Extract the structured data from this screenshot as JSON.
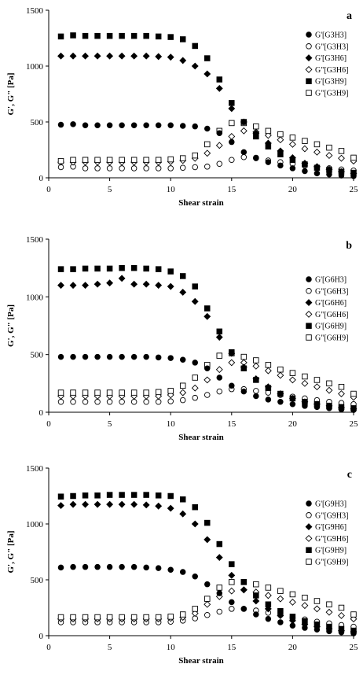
{
  "chart_data": [
    {
      "type": "scatter",
      "panel_label": "a",
      "xlabel": "Shear strain",
      "ylabel": "G', G\" [Pa]",
      "xlim": [
        0,
        25
      ],
      "ylim": [
        0,
        1500
      ],
      "xticks": [
        0,
        5,
        10,
        15,
        20,
        25
      ],
      "yticks": [
        0,
        500,
        1000,
        1500
      ],
      "legend_position": "right",
      "x": [
        1,
        2,
        3,
        4,
        5,
        6,
        7,
        8,
        9,
        10,
        11,
        12,
        13,
        14,
        15,
        16,
        17,
        18,
        19,
        20,
        21,
        22,
        23,
        24,
        25
      ],
      "series": [
        {
          "name": "G'[G3H3]",
          "marker": "circle-filled",
          "values": [
            475,
            480,
            470,
            470,
            470,
            470,
            470,
            470,
            470,
            470,
            465,
            460,
            440,
            400,
            320,
            230,
            180,
            140,
            110,
            85,
            60,
            40,
            30,
            20,
            15
          ]
        },
        {
          "name": "G\"[G3H3]",
          "marker": "circle-open",
          "values": [
            95,
            100,
            85,
            85,
            85,
            85,
            85,
            85,
            85,
            85,
            90,
            95,
            100,
            125,
            160,
            185,
            175,
            155,
            140,
            125,
            110,
            95,
            85,
            75,
            65
          ]
        },
        {
          "name": "G'[G3H6]",
          "marker": "diamond-filled",
          "values": [
            1090,
            1090,
            1090,
            1090,
            1090,
            1090,
            1090,
            1090,
            1085,
            1080,
            1050,
            1000,
            930,
            800,
            620,
            500,
            400,
            310,
            240,
            180,
            130,
            100,
            75,
            55,
            40
          ]
        },
        {
          "name": "G\"[G3H6]",
          "marker": "diamond-open",
          "values": [
            140,
            140,
            140,
            140,
            140,
            140,
            140,
            140,
            140,
            145,
            155,
            175,
            220,
            290,
            370,
            420,
            410,
            380,
            340,
            300,
            260,
            230,
            200,
            175,
            150
          ]
        },
        {
          "name": "G'[G3H9]",
          "marker": "square-filled",
          "values": [
            1265,
            1275,
            1270,
            1270,
            1270,
            1270,
            1270,
            1270,
            1265,
            1260,
            1240,
            1180,
            1070,
            880,
            670,
            500,
            370,
            280,
            210,
            160,
            120,
            90,
            70,
            55,
            45
          ]
        },
        {
          "name": "G\"[G3H9]",
          "marker": "square-open",
          "values": [
            150,
            160,
            160,
            160,
            160,
            160,
            160,
            160,
            160,
            165,
            175,
            200,
            300,
            420,
            490,
            490,
            460,
            420,
            390,
            360,
            330,
            300,
            270,
            240,
            180
          ]
        }
      ]
    },
    {
      "type": "scatter",
      "panel_label": "b",
      "xlabel": "Shear strain",
      "ylabel": "G', G\" [Pa]",
      "xlim": [
        0,
        25
      ],
      "ylim": [
        0,
        1500
      ],
      "xticks": [
        0,
        5,
        10,
        15,
        20,
        25
      ],
      "yticks": [
        0,
        500,
        1000,
        1500
      ],
      "legend_position": "right",
      "x": [
        1,
        2,
        3,
        4,
        5,
        6,
        7,
        8,
        9,
        10,
        11,
        12,
        13,
        14,
        15,
        16,
        17,
        18,
        19,
        20,
        21,
        22,
        23,
        24,
        25
      ],
      "series": [
        {
          "name": "G'[G6H3]",
          "marker": "circle-filled",
          "values": [
            480,
            480,
            480,
            480,
            480,
            480,
            480,
            480,
            475,
            470,
            455,
            430,
            380,
            300,
            230,
            180,
            140,
            110,
            90,
            70,
            55,
            45,
            35,
            25,
            20
          ]
        },
        {
          "name": "G\"[G6H3]",
          "marker": "circle-open",
          "values": [
            90,
            90,
            90,
            90,
            90,
            90,
            90,
            90,
            90,
            95,
            105,
            125,
            150,
            180,
            200,
            200,
            185,
            170,
            150,
            135,
            120,
            105,
            90,
            80,
            70
          ]
        },
        {
          "name": "G'[G6H6]",
          "marker": "diamond-filled",
          "values": [
            1100,
            1100,
            1100,
            1110,
            1120,
            1160,
            1110,
            1110,
            1100,
            1090,
            1040,
            960,
            830,
            650,
            510,
            390,
            290,
            220,
            160,
            120,
            90,
            70,
            55,
            40,
            30
          ]
        },
        {
          "name": "G\"[G6H6]",
          "marker": "diamond-open",
          "values": [
            140,
            140,
            140,
            140,
            140,
            140,
            140,
            140,
            140,
            150,
            170,
            210,
            280,
            370,
            430,
            430,
            400,
            360,
            320,
            280,
            250,
            220,
            190,
            160,
            130
          ]
        },
        {
          "name": "G'[G6H9]",
          "marker": "square-filled",
          "values": [
            1240,
            1240,
            1245,
            1245,
            1245,
            1250,
            1250,
            1245,
            1240,
            1220,
            1180,
            1090,
            900,
            700,
            520,
            380,
            280,
            210,
            160,
            120,
            90,
            70,
            55,
            45,
            35
          ]
        },
        {
          "name": "G\"[G6H9]",
          "marker": "square-open",
          "values": [
            170,
            170,
            170,
            170,
            170,
            170,
            170,
            170,
            175,
            185,
            230,
            300,
            410,
            490,
            510,
            480,
            450,
            410,
            370,
            340,
            310,
            280,
            250,
            220,
            160
          ]
        }
      ]
    },
    {
      "type": "scatter",
      "panel_label": "c",
      "xlabel": "Shear strain",
      "ylabel": "G', G\" [Pa]",
      "xlim": [
        0,
        25
      ],
      "ylim": [
        0,
        1500
      ],
      "xticks": [
        0,
        5,
        10,
        15,
        20,
        25
      ],
      "yticks": [
        0,
        500,
        1000,
        1500
      ],
      "legend_position": "right",
      "x": [
        1,
        2,
        3,
        4,
        5,
        6,
        7,
        8,
        9,
        10,
        11,
        12,
        13,
        14,
        15,
        16,
        17,
        18,
        19,
        20,
        21,
        22,
        23,
        24,
        25
      ],
      "series": [
        {
          "name": "G'[G9H3]",
          "marker": "circle-filled",
          "values": [
            610,
            615,
            615,
            615,
            615,
            615,
            615,
            610,
            605,
            590,
            570,
            530,
            460,
            380,
            300,
            240,
            190,
            150,
            120,
            90,
            70,
            55,
            40,
            30,
            20
          ]
        },
        {
          "name": "G\"[G9H3]",
          "marker": "circle-open",
          "values": [
            120,
            120,
            120,
            120,
            120,
            120,
            120,
            120,
            120,
            125,
            135,
            155,
            185,
            215,
            240,
            240,
            225,
            205,
            185,
            165,
            145,
            125,
            110,
            95,
            80
          ]
        },
        {
          "name": "G'[G9H6]",
          "marker": "diamond-filled",
          "values": [
            1165,
            1175,
            1175,
            1175,
            1175,
            1175,
            1175,
            1170,
            1160,
            1140,
            1090,
            1000,
            860,
            700,
            540,
            410,
            310,
            240,
            180,
            135,
            100,
            80,
            60,
            45,
            35
          ]
        },
        {
          "name": "G\"[G9H6]",
          "marker": "diamond-open",
          "values": [
            150,
            150,
            150,
            150,
            150,
            150,
            150,
            150,
            150,
            155,
            165,
            200,
            280,
            350,
            400,
            410,
            390,
            360,
            330,
            300,
            270,
            240,
            210,
            180,
            150
          ]
        },
        {
          "name": "G'[G9H9]",
          "marker": "square-filled",
          "values": [
            1245,
            1250,
            1255,
            1255,
            1260,
            1260,
            1260,
            1260,
            1255,
            1250,
            1220,
            1150,
            1010,
            820,
            640,
            480,
            360,
            280,
            220,
            170,
            130,
            100,
            80,
            60,
            45
          ]
        },
        {
          "name": "G\"[G9H9]",
          "marker": "square-open",
          "values": [
            165,
            165,
            165,
            165,
            165,
            165,
            165,
            165,
            165,
            170,
            190,
            240,
            330,
            430,
            480,
            480,
            460,
            430,
            400,
            370,
            340,
            310,
            280,
            250,
            190
          ]
        }
      ]
    }
  ]
}
